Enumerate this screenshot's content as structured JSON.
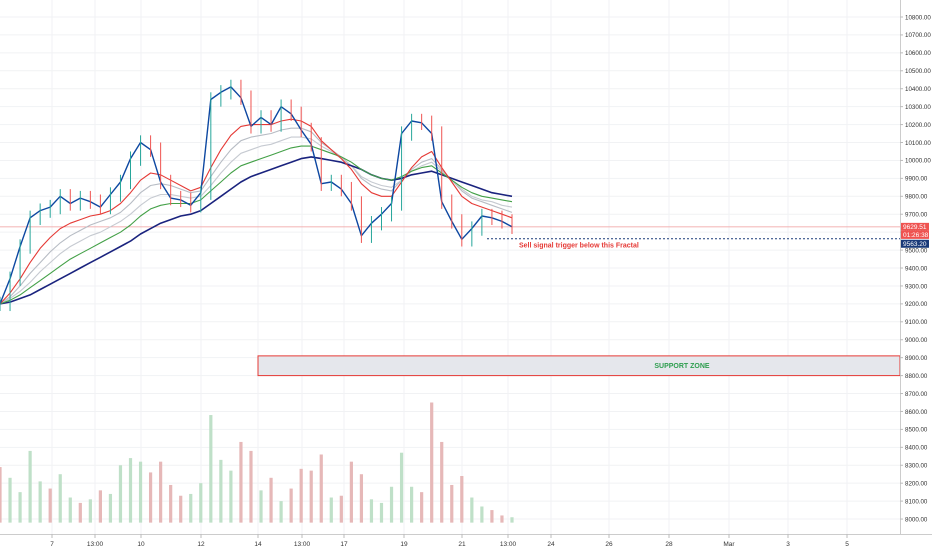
{
  "chart_data": {
    "type": "line",
    "title": "",
    "xlabel": "",
    "ylabel": "",
    "y_axis_side": "right",
    "grid": true,
    "ylim": [
      7960,
      10900
    ],
    "x_ticks": [
      "7",
      "13:00",
      "10",
      "12",
      "14",
      "13:00",
      "17",
      "19",
      "21",
      "13:00",
      "24",
      "26",
      "28",
      "Mar",
      "3",
      "5"
    ],
    "y_ticks": [
      "10800.00",
      "10700.00",
      "10600.00",
      "10500.00",
      "10400.00",
      "10300.00",
      "10200.00",
      "10100.00",
      "10000.00",
      "9900.00",
      "9800.00",
      "9700.00",
      "9600.00",
      "9500.00",
      "9400.00",
      "9300.00",
      "9200.00",
      "9100.00",
      "9000.00",
      "8900.00",
      "8800.00",
      "8700.00",
      "8600.00",
      "8500.00",
      "8400.00",
      "8300.00",
      "8200.00",
      "8100.00",
      "8000.00"
    ],
    "price_labels": {
      "last_price": "9629.51",
      "countdown": "01:26:38",
      "fractal_level": "9563.20"
    },
    "annotations": {
      "fractal_note": "Sell signal trigger below this Fractal",
      "support_zone_label": "SUPPORT ZONE"
    },
    "support_zone": [
      8800,
      8910
    ],
    "fractal_level_value": 9563.2,
    "last_price_value": 9629.51,
    "series": [
      {
        "role": "price",
        "color": "#0d47a1",
        "values": [
          9200,
          9340,
          9520,
          9680,
          9720,
          9740,
          9800,
          9760,
          9790,
          9770,
          9740,
          9810,
          9880,
          10010,
          10100,
          10060,
          9880,
          9790,
          9780,
          9750,
          9820,
          10340,
          10380,
          10410,
          10350,
          10190,
          10240,
          10200,
          10300,
          10260,
          10170,
          10090,
          9870,
          9880,
          9840,
          9760,
          9580,
          9650,
          9700,
          9760,
          10150,
          10220,
          10210,
          10150,
          9770,
          9660,
          9560,
          9620,
          9690,
          9680,
          9660,
          9630
        ]
      },
      {
        "role": "ma-red",
        "color": "#e53935",
        "values": [
          9200,
          9260,
          9340,
          9430,
          9510,
          9570,
          9620,
          9650,
          9670,
          9690,
          9700,
          9720,
          9760,
          9820,
          9890,
          9930,
          9920,
          9890,
          9860,
          9830,
          9850,
          9960,
          10060,
          10140,
          10190,
          10200,
          10200,
          10200,
          10220,
          10230,
          10220,
          10190,
          10110,
          10060,
          10010,
          9950,
          9870,
          9820,
          9800,
          9800,
          9880,
          9960,
          10020,
          10050,
          9960,
          9880,
          9800,
          9760,
          9740,
          9720,
          9700,
          9680
        ]
      },
      {
        "role": "ma-green",
        "color": "#43a047",
        "values": [
          9200,
          9220,
          9250,
          9290,
          9330,
          9370,
          9410,
          9450,
          9480,
          9510,
          9540,
          9570,
          9600,
          9640,
          9690,
          9730,
          9750,
          9760,
          9760,
          9760,
          9780,
          9830,
          9880,
          9930,
          9970,
          9990,
          10010,
          10030,
          10050,
          10070,
          10080,
          10080,
          10060,
          10040,
          10020,
          9990,
          9950,
          9920,
          9900,
          9890,
          9910,
          9940,
          9960,
          9970,
          9930,
          9890,
          9850,
          9820,
          9800,
          9790,
          9780,
          9770
        ]
      },
      {
        "role": "ma-navy",
        "color": "#1a237e",
        "values": [
          9200,
          9210,
          9230,
          9250,
          9280,
          9310,
          9340,
          9370,
          9400,
          9430,
          9460,
          9490,
          9520,
          9550,
          9590,
          9620,
          9650,
          9670,
          9690,
          9700,
          9720,
          9760,
          9800,
          9840,
          9880,
          9910,
          9930,
          9950,
          9970,
          9990,
          10010,
          10020,
          10010,
          10000,
          9990,
          9970,
          9950,
          9920,
          9900,
          9890,
          9900,
          9920,
          9930,
          9940,
          9920,
          9900,
          9880,
          9860,
          9840,
          9820,
          9810,
          9800
        ]
      },
      {
        "role": "ma-gray-1",
        "color": "#b7bcc4",
        "values": [
          9200,
          9240,
          9300,
          9370,
          9430,
          9490,
          9540,
          9580,
          9610,
          9640,
          9660,
          9680,
          9710,
          9760,
          9820,
          9860,
          9870,
          9860,
          9840,
          9820,
          9830,
          9910,
          9990,
          10060,
          10110,
          10130,
          10140,
          10150,
          10170,
          10180,
          10180,
          10160,
          10100,
          10060,
          10020,
          9970,
          9900,
          9860,
          9840,
          9830,
          9890,
          9950,
          9990,
          10010,
          9950,
          9890,
          9830,
          9790,
          9770,
          9750,
          9730,
          9710
        ]
      },
      {
        "role": "ma-gray-2",
        "color": "#c6cad1",
        "values": [
          9200,
          9230,
          9270,
          9320,
          9380,
          9430,
          9480,
          9520,
          9550,
          9580,
          9600,
          9630,
          9660,
          9700,
          9750,
          9790,
          9810,
          9810,
          9800,
          9790,
          9800,
          9860,
          9930,
          9990,
          10040,
          10060,
          10080,
          10090,
          10110,
          10130,
          10130,
          10120,
          10080,
          10050,
          10010,
          9970,
          9910,
          9880,
          9860,
          9850,
          9890,
          9940,
          9970,
          9990,
          9940,
          9890,
          9840,
          9800,
          9780,
          9770,
          9750,
          9740
        ]
      }
    ],
    "volume": [
      {
        "value": 8290,
        "color": "#e6b8b8"
      },
      {
        "value": 8230,
        "color": "#bfe0c8"
      },
      {
        "value": 8150,
        "color": "#bfe0c8"
      },
      {
        "value": 8380,
        "color": "#bfe0c8"
      },
      {
        "value": 8210,
        "color": "#bfe0c8"
      },
      {
        "value": 8170,
        "color": "#e6b8b8"
      },
      {
        "value": 8250,
        "color": "#bfe0c8"
      },
      {
        "value": 8120,
        "color": "#bfe0c8"
      },
      {
        "value": 8090,
        "color": "#e6b8b8"
      },
      {
        "value": 8110,
        "color": "#bfe0c8"
      },
      {
        "value": 8160,
        "color": "#e6b8b8"
      },
      {
        "value": 8140,
        "color": "#bfe0c8"
      },
      {
        "value": 8300,
        "color": "#bfe0c8"
      },
      {
        "value": 8340,
        "color": "#bfe0c8"
      },
      {
        "value": 8320,
        "color": "#bfe0c8"
      },
      {
        "value": 8260,
        "color": "#e6b8b8"
      },
      {
        "value": 8320,
        "color": "#e6b8b8"
      },
      {
        "value": 8190,
        "color": "#e6b8b8"
      },
      {
        "value": 8130,
        "color": "#e6b8b8"
      },
      {
        "value": 8140,
        "color": "#bfe0c8"
      },
      {
        "value": 8200,
        "color": "#bfe0c8"
      },
      {
        "value": 8580,
        "color": "#bfe0c8"
      },
      {
        "value": 8330,
        "color": "#bfe0c8"
      },
      {
        "value": 8270,
        "color": "#bfe0c8"
      },
      {
        "value": 8430,
        "color": "#e6b8b8"
      },
      {
        "value": 8380,
        "color": "#e6b8b8"
      },
      {
        "value": 8160,
        "color": "#bfe0c8"
      },
      {
        "value": 8230,
        "color": "#e6b8b8"
      },
      {
        "value": 8100,
        "color": "#bfe0c8"
      },
      {
        "value": 8170,
        "color": "#e6b8b8"
      },
      {
        "value": 8280,
        "color": "#e6b8b8"
      },
      {
        "value": 8270,
        "color": "#e6b8b8"
      },
      {
        "value": 8360,
        "color": "#e6b8b8"
      },
      {
        "value": 8120,
        "color": "#bfe0c8"
      },
      {
        "value": 8130,
        "color": "#e6b8b8"
      },
      {
        "value": 8320,
        "color": "#e6b8b8"
      },
      {
        "value": 8250,
        "color": "#e6b8b8"
      },
      {
        "value": 8110,
        "color": "#bfe0c8"
      },
      {
        "value": 8090,
        "color": "#bfe0c8"
      },
      {
        "value": 8180,
        "color": "#bfe0c8"
      },
      {
        "value": 8370,
        "color": "#bfe0c8"
      },
      {
        "value": 8180,
        "color": "#bfe0c8"
      },
      {
        "value": 8150,
        "color": "#e6b8b8"
      },
      {
        "value": 8650,
        "color": "#e6b8b8"
      },
      {
        "value": 8430,
        "color": "#e6b8b8"
      },
      {
        "value": 8190,
        "color": "#e6b8b8"
      },
      {
        "value": 8240,
        "color": "#e6b8b8"
      },
      {
        "value": 8120,
        "color": "#bfe0c8"
      },
      {
        "value": 8070,
        "color": "#bfe0c8"
      },
      {
        "value": 8050,
        "color": "#e6b8b8"
      },
      {
        "value": 8020,
        "color": "#e6b8b8"
      },
      {
        "value": 8010,
        "color": "#bfe0c8"
      }
    ]
  }
}
